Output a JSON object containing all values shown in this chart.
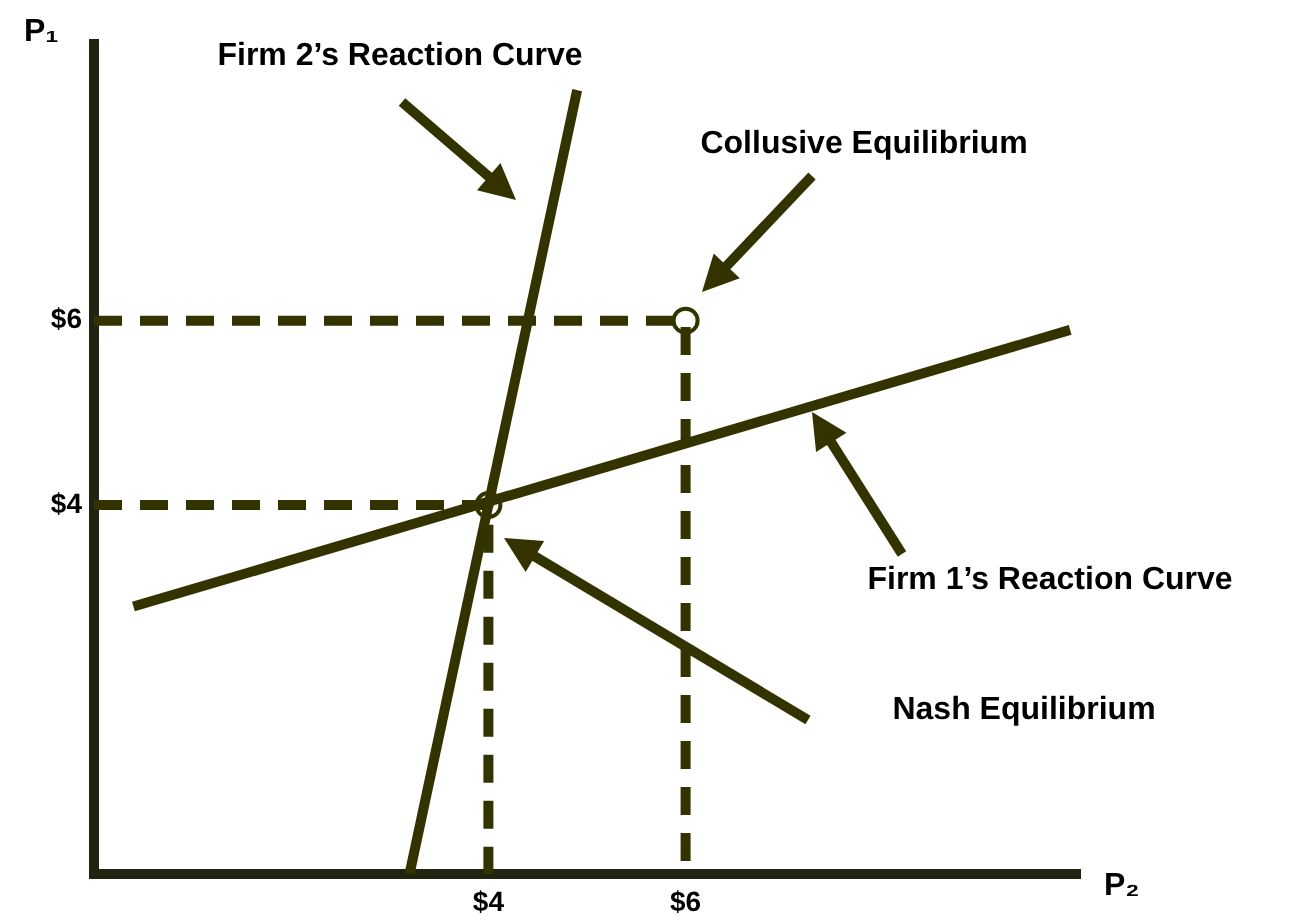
{
  "chart_data": {
    "type": "line",
    "xlabel": "P₂",
    "ylabel": "P₁",
    "xlim": [
      0,
      10
    ],
    "ylim": [
      0,
      9
    ],
    "xticks": [
      {
        "value": 4,
        "label": "$4"
      },
      {
        "value": 6,
        "label": "$6"
      }
    ],
    "yticks": [
      {
        "value": 4,
        "label": "$4"
      },
      {
        "value": 6,
        "label": "$6"
      }
    ],
    "grid": false,
    "legend": false,
    "series": [
      {
        "type": "line",
        "color": "#333300",
        "x": [
          3.2,
          4.9
        ],
        "values": [
          0,
          8.5
        ],
        "marker": "none",
        "line_style": "solid"
      },
      {
        "type": "line",
        "color": "#333300",
        "x": [
          0.4,
          9.9
        ],
        "values": [
          2.9,
          5.9
        ],
        "marker": "none",
        "line_style": "solid"
      },
      {
        "type": "line",
        "color": "#333300",
        "x": [
          0,
          4,
          4
        ],
        "values": [
          4,
          4,
          0
        ],
        "marker": "none",
        "line_style": "dashed"
      },
      {
        "type": "line",
        "color": "#333300",
        "x": [
          0,
          6,
          6
        ],
        "values": [
          6,
          6,
          0
        ],
        "marker": "none",
        "line_style": "dashed"
      },
      {
        "type": "scatter",
        "color": "#333300",
        "x": [
          4,
          6
        ],
        "values": [
          4,
          6
        ],
        "marker": "circle"
      }
    ],
    "annotations": [
      "Firm 2’s Reaction Curve",
      "Collusive Equilibrium",
      "Firm 1’s Reaction Curve",
      "Nash Equilibrium"
    ]
  }
}
